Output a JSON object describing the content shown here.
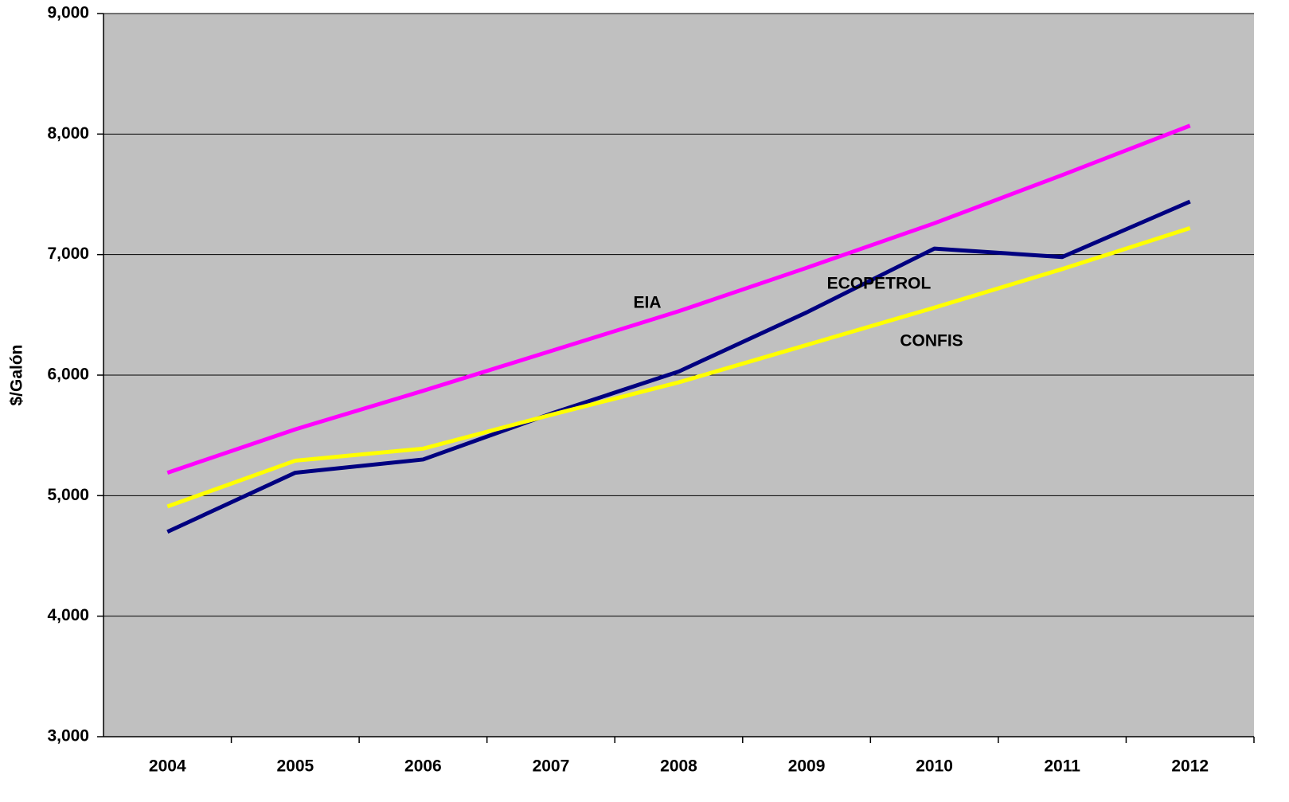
{
  "chart_data": {
    "type": "line",
    "y_label": "$/Galón",
    "categories": [
      "2004",
      "2005",
      "2006",
      "2007",
      "2008",
      "2009",
      "2010",
      "2011",
      "2012"
    ],
    "series": [
      {
        "name": "EIA",
        "color": "#ff00ff",
        "values": [
          5190,
          5550,
          5870,
          6200,
          6530,
          6890,
          7260,
          7660,
          8070
        ]
      },
      {
        "name": "ECOPETROL",
        "color": "#000080",
        "values": [
          4700,
          5190,
          5300,
          5680,
          6030,
          6520,
          7050,
          6980,
          7440
        ]
      },
      {
        "name": "CONFIS",
        "color": "#ffff00",
        "values": [
          4910,
          5290,
          5390,
          5670,
          5940,
          6250,
          6560,
          6880,
          7220
        ]
      }
    ],
    "ylim": [
      3000,
      9000
    ],
    "yticks": [
      {
        "value": 3000,
        "label": "3,000"
      },
      {
        "value": 4000,
        "label": "4,000"
      },
      {
        "value": 5000,
        "label": "5,000"
      },
      {
        "value": 6000,
        "label": "6,000"
      },
      {
        "value": 7000,
        "label": "7,000"
      },
      {
        "value": 8000,
        "label": "8,000"
      },
      {
        "value": 9000,
        "label": "9,000"
      }
    ],
    "grid": true,
    "background": "#c0c0c0"
  }
}
